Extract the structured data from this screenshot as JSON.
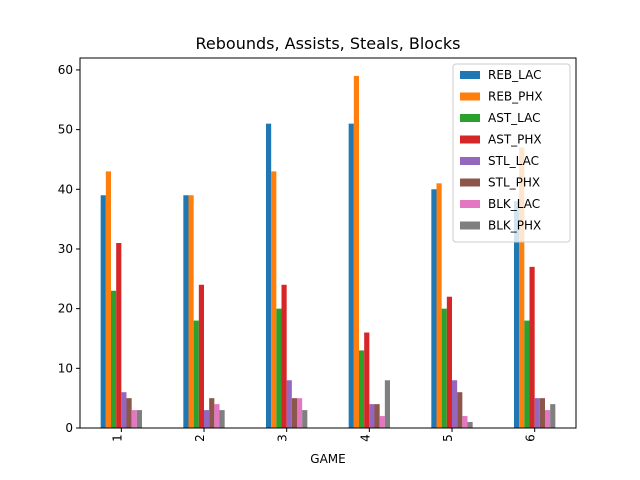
{
  "chart_data": {
    "type": "bar",
    "title": "Rebounds, Assists, Steals, Blocks",
    "xlabel": "GAME",
    "ylabel": "",
    "categories": [
      "1",
      "2",
      "3",
      "4",
      "5",
      "6"
    ],
    "ylim": [
      0,
      62
    ],
    "yticks": [
      0,
      10,
      20,
      30,
      40,
      50,
      60
    ],
    "grid": false,
    "legend_position": "top-right",
    "series": [
      {
        "name": "REB_LAC",
        "color": "#1f77b4",
        "values": [
          39,
          39,
          51,
          51,
          40,
          38
        ]
      },
      {
        "name": "REB_PHX",
        "color": "#ff7f0e",
        "values": [
          43,
          39,
          43,
          59,
          41,
          47
        ]
      },
      {
        "name": "AST_LAC",
        "color": "#2ca02c",
        "values": [
          23,
          18,
          20,
          13,
          20,
          18
        ]
      },
      {
        "name": "AST_PHX",
        "color": "#d62728",
        "values": [
          31,
          24,
          24,
          16,
          22,
          27
        ]
      },
      {
        "name": "STL_LAC",
        "color": "#9467bd",
        "values": [
          6,
          3,
          8,
          4,
          8,
          5
        ]
      },
      {
        "name": "STL_PHX",
        "color": "#8c564b",
        "values": [
          5,
          5,
          5,
          4,
          6,
          5
        ]
      },
      {
        "name": "BLK_LAC",
        "color": "#e377c2",
        "values": [
          3,
          4,
          5,
          2,
          2,
          3
        ]
      },
      {
        "name": "BLK_PHX",
        "color": "#7f7f7f",
        "values": [
          3,
          3,
          3,
          8,
          1,
          4
        ]
      }
    ]
  }
}
